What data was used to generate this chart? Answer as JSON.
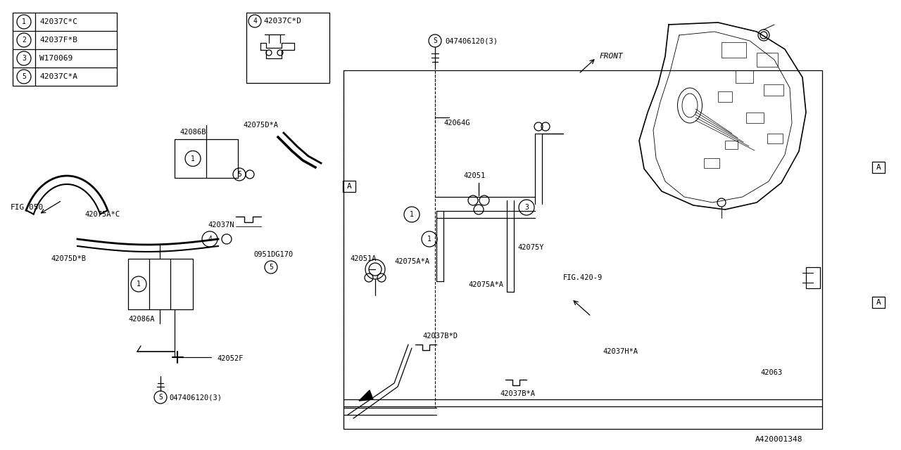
{
  "bg": "#ffffff",
  "lc": "#000000",
  "fig_w": 12.8,
  "fig_h": 6.4,
  "legend": [
    {
      "num": "1",
      "part": "42037C*C"
    },
    {
      "num": "2",
      "part": "42037F*B"
    },
    {
      "num": "3",
      "part": "W170069"
    },
    {
      "num": "5",
      "part": "42037C*A"
    }
  ],
  "part4": "42037C*D",
  "ref_code": "A420001348"
}
